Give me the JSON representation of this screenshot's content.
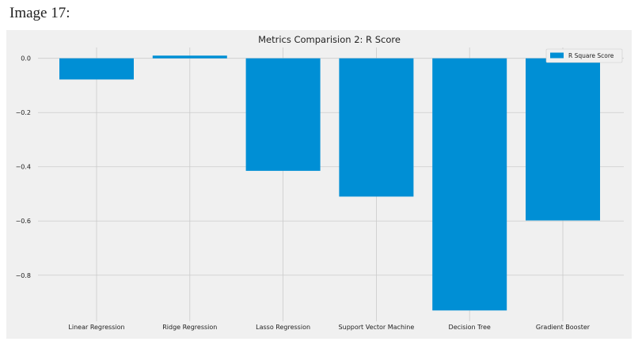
{
  "caption": "Image 17:",
  "chart_data": {
    "type": "bar",
    "title": "Metrics Comparision 2: R Score",
    "xlabel": "",
    "ylabel": "",
    "categories": [
      "Linear Regression",
      "Ridge Regression",
      "Lasso Regression",
      "Support Vector Machine",
      "Decision Tree",
      "Gradient Booster"
    ],
    "series": [
      {
        "name": "R Square Score",
        "values": [
          -0.078,
          0.01,
          -0.415,
          -0.51,
          -0.93,
          -0.598
        ]
      }
    ],
    "ylim": [
      -0.97,
      0.04
    ],
    "yticks": [
      0.0,
      -0.2,
      -0.4,
      -0.6,
      -0.8
    ],
    "ytick_labels": [
      "0.0",
      "−0.2",
      "−0.4",
      "−0.6",
      "−0.8"
    ],
    "grid": true,
    "legend_position": "top-right",
    "colors": {
      "bar": "#008fd5",
      "background": "#f0f0f0",
      "grid": "#cbcbcb",
      "text": "#222222"
    }
  }
}
